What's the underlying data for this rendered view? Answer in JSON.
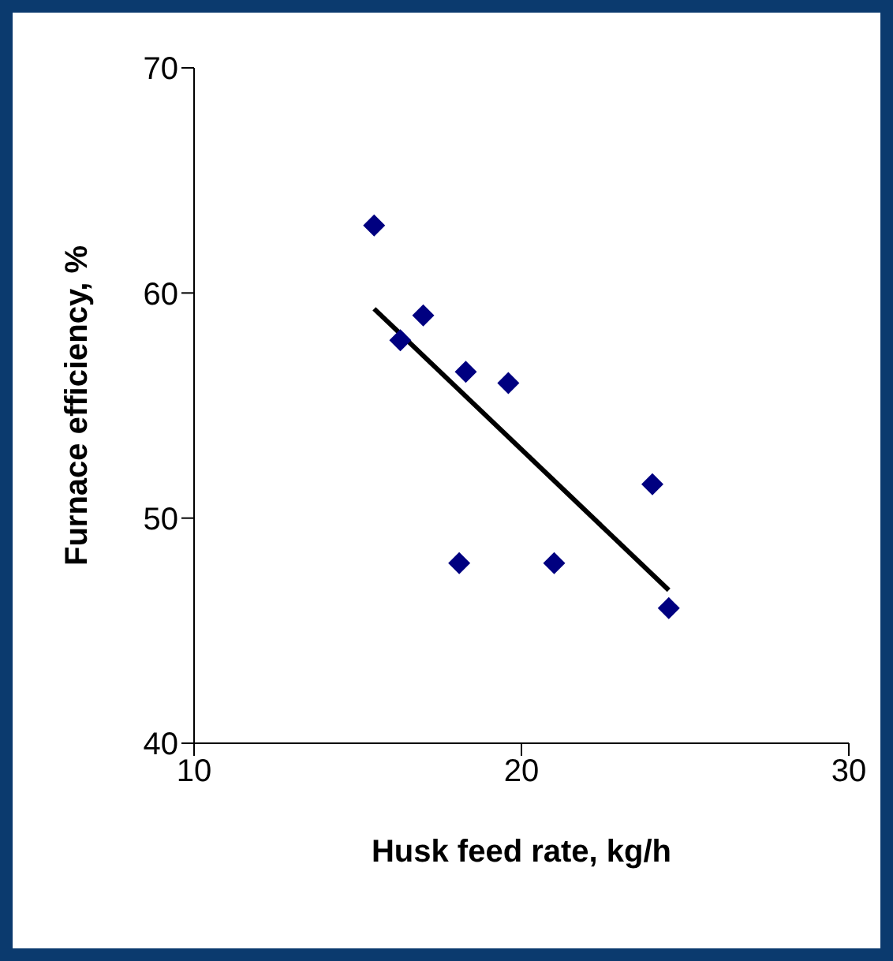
{
  "chart_data": {
    "type": "scatter",
    "xlabel": "Husk feed rate, kg/h",
    "ylabel": "Furnace efficiency, %",
    "xlim": [
      10,
      30
    ],
    "xticks": [
      10,
      20,
      30
    ],
    "ylim": [
      40,
      70
    ],
    "yticks": [
      40,
      50,
      60,
      70
    ],
    "grid": false,
    "legend": false,
    "series": [
      {
        "marker": "diamond",
        "color": "#000080",
        "x": [
          15.5,
          16.3,
          17,
          18.3,
          19.6,
          18.1,
          21,
          24,
          24.5
        ],
        "values": [
          63,
          57.9,
          59,
          56.5,
          56,
          48,
          48,
          51.5,
          46
        ]
      },
      {
        "type": "line",
        "color": "#000000",
        "x": [
          15.5,
          24.5
        ],
        "values": [
          59.3,
          46.8
        ]
      }
    ]
  }
}
